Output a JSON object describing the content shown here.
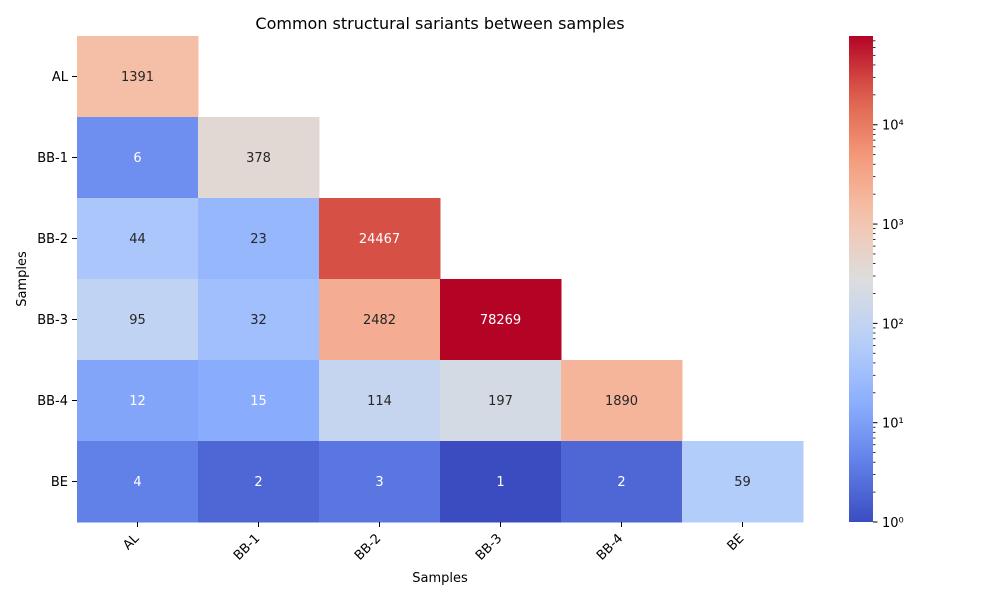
{
  "chart_data": {
    "type": "heatmap",
    "title": "Common structural sariants between samples",
    "xlabel": "Samples",
    "ylabel": "Samples",
    "x_categories": [
      "AL",
      "BB-1",
      "BB-2",
      "BB-3",
      "BB-4",
      "BE"
    ],
    "y_categories": [
      "AL",
      "BB-1",
      "BB-2",
      "BB-3",
      "BB-4",
      "BE"
    ],
    "values": [
      [
        1391,
        null,
        null,
        null,
        null,
        null
      ],
      [
        6,
        378,
        null,
        null,
        null,
        null
      ],
      [
        44,
        23,
        24467,
        null,
        null,
        null
      ],
      [
        95,
        32,
        2482,
        78269,
        null,
        null
      ],
      [
        12,
        15,
        114,
        197,
        1890,
        null
      ],
      [
        4,
        2,
        3,
        1,
        2,
        59
      ]
    ],
    "colormap": "coolwarm",
    "color_scale": "log",
    "color_range": [
      1,
      78269
    ],
    "colorbar_ticks": [
      {
        "value": 1,
        "label": "10⁰"
      },
      {
        "value": 10,
        "label": "10¹"
      },
      {
        "value": 100,
        "label": "10²"
      },
      {
        "value": 1000,
        "label": "10³"
      },
      {
        "value": 10000,
        "label": "10⁴"
      }
    ],
    "mask": "upper triangle hidden",
    "annotated": true,
    "grid": false
  }
}
